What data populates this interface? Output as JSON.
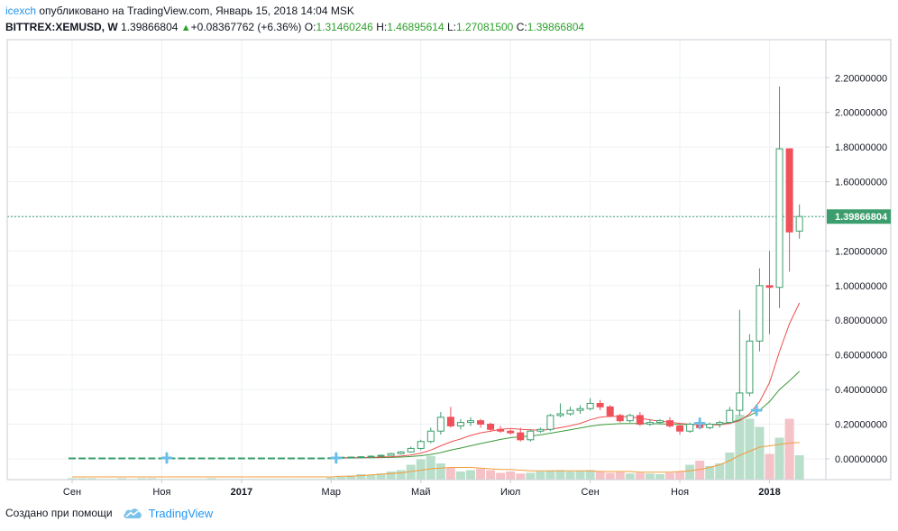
{
  "header": {
    "user": "icexch",
    "published": "опубликовано на TradingView.com, Январь 15, 2018 14:04 MSK"
  },
  "ticker": {
    "symbol": "BITTREX:XEMUSD, W",
    "price": "1.39866804",
    "change": "+0.08367762 (+6.36%)",
    "o_label": "O:",
    "o": "1.31460246",
    "h_label": "H:",
    "h": "1.46895614",
    "l_label": "L:",
    "l": "1.27081500",
    "c_label": "C:",
    "c": "1.39866804"
  },
  "footer": {
    "created_with": "Создано при помощи",
    "brand": "TradingView"
  },
  "colors": {
    "up": "#3c9e6d",
    "down": "#f0505a",
    "vol_up": "#b9dfcb",
    "vol_down": "#f5c2c7",
    "ma_fast": "#ef4f4f",
    "ma_slow": "#3a9a3a",
    "vol_ma": "#f39c39",
    "price_line": "#3c9e6d",
    "marker": "#6bbfe8"
  },
  "chart_data": {
    "type": "candlestick",
    "y_axis_ticks": [
      "2.20000000",
      "2.00000000",
      "1.80000000",
      "1.60000000",
      "1.40000000",
      "1.20000000",
      "1.00000000",
      "0.80000000",
      "0.60000000",
      "0.40000000",
      "0.20000000",
      "0.00000000"
    ],
    "y_axis_values": [
      2.2,
      2.0,
      1.8,
      1.6,
      1.4,
      1.2,
      1.0,
      0.8,
      0.6,
      0.4,
      0.2,
      0.0
    ],
    "ylim": [
      -0.12,
      2.42
    ],
    "x_axis_labels": [
      "Сен",
      "Ноя",
      "2017",
      "Мар",
      "Май",
      "Июл",
      "Сен",
      "Ноя",
      "2018"
    ],
    "x_label_week_index": [
      0,
      9,
      17,
      26,
      35,
      44,
      52,
      61,
      70
    ],
    "last_price_label": "1.39866804",
    "last_price": 1.39866804,
    "candles": [
      [
        0.005,
        0.006,
        0.004,
        0.005
      ],
      [
        0.005,
        0.006,
        0.004,
        0.005
      ],
      [
        0.005,
        0.006,
        0.004,
        0.005
      ],
      [
        0.005,
        0.006,
        0.004,
        0.005
      ],
      [
        0.005,
        0.006,
        0.004,
        0.005
      ],
      [
        0.005,
        0.006,
        0.004,
        0.005
      ],
      [
        0.005,
        0.006,
        0.004,
        0.005
      ],
      [
        0.005,
        0.006,
        0.004,
        0.005
      ],
      [
        0.005,
        0.006,
        0.004,
        0.005
      ],
      [
        0.005,
        0.006,
        0.004,
        0.005
      ],
      [
        0.005,
        0.006,
        0.004,
        0.005
      ],
      [
        0.005,
        0.006,
        0.004,
        0.005
      ],
      [
        0.005,
        0.006,
        0.004,
        0.005
      ],
      [
        0.005,
        0.006,
        0.004,
        0.005
      ],
      [
        0.005,
        0.006,
        0.004,
        0.005
      ],
      [
        0.005,
        0.006,
        0.004,
        0.005
      ],
      [
        0.005,
        0.006,
        0.004,
        0.005
      ],
      [
        0.005,
        0.006,
        0.004,
        0.005
      ],
      [
        0.005,
        0.006,
        0.004,
        0.005
      ],
      [
        0.005,
        0.006,
        0.004,
        0.005
      ],
      [
        0.005,
        0.006,
        0.004,
        0.005
      ],
      [
        0.005,
        0.006,
        0.004,
        0.005
      ],
      [
        0.005,
        0.006,
        0.004,
        0.005
      ],
      [
        0.005,
        0.006,
        0.004,
        0.005
      ],
      [
        0.005,
        0.006,
        0.004,
        0.005
      ],
      [
        0.005,
        0.006,
        0.004,
        0.005
      ],
      [
        0.005,
        0.008,
        0.004,
        0.006
      ],
      [
        0.006,
        0.01,
        0.005,
        0.009
      ],
      [
        0.009,
        0.012,
        0.007,
        0.01
      ],
      [
        0.01,
        0.015,
        0.008,
        0.012
      ],
      [
        0.012,
        0.02,
        0.01,
        0.015
      ],
      [
        0.015,
        0.025,
        0.012,
        0.02
      ],
      [
        0.02,
        0.035,
        0.018,
        0.03
      ],
      [
        0.03,
        0.045,
        0.025,
        0.04
      ],
      [
        0.04,
        0.07,
        0.035,
        0.06
      ],
      [
        0.06,
        0.11,
        0.05,
        0.1
      ],
      [
        0.1,
        0.18,
        0.09,
        0.16
      ],
      [
        0.16,
        0.27,
        0.14,
        0.24
      ],
      [
        0.24,
        0.3,
        0.18,
        0.19
      ],
      [
        0.19,
        0.23,
        0.17,
        0.21
      ],
      [
        0.21,
        0.24,
        0.19,
        0.22
      ],
      [
        0.22,
        0.23,
        0.18,
        0.2
      ],
      [
        0.2,
        0.21,
        0.16,
        0.17
      ],
      [
        0.17,
        0.19,
        0.15,
        0.16
      ],
      [
        0.16,
        0.17,
        0.14,
        0.15
      ],
      [
        0.15,
        0.18,
        0.1,
        0.11
      ],
      [
        0.11,
        0.17,
        0.1,
        0.16
      ],
      [
        0.16,
        0.18,
        0.15,
        0.17
      ],
      [
        0.17,
        0.26,
        0.16,
        0.25
      ],
      [
        0.25,
        0.32,
        0.24,
        0.26
      ],
      [
        0.26,
        0.3,
        0.25,
        0.28
      ],
      [
        0.28,
        0.31,
        0.26,
        0.29
      ],
      [
        0.29,
        0.35,
        0.28,
        0.32
      ],
      [
        0.32,
        0.34,
        0.28,
        0.3
      ],
      [
        0.3,
        0.31,
        0.24,
        0.25
      ],
      [
        0.25,
        0.26,
        0.21,
        0.22
      ],
      [
        0.22,
        0.26,
        0.21,
        0.25
      ],
      [
        0.25,
        0.27,
        0.19,
        0.2
      ],
      [
        0.2,
        0.23,
        0.19,
        0.21
      ],
      [
        0.21,
        0.23,
        0.2,
        0.22
      ],
      [
        0.22,
        0.24,
        0.18,
        0.19
      ],
      [
        0.19,
        0.2,
        0.14,
        0.16
      ],
      [
        0.16,
        0.21,
        0.15,
        0.2
      ],
      [
        0.2,
        0.23,
        0.17,
        0.18
      ],
      [
        0.18,
        0.21,
        0.17,
        0.2
      ],
      [
        0.2,
        0.22,
        0.18,
        0.21
      ],
      [
        0.21,
        0.3,
        0.2,
        0.28
      ],
      [
        0.28,
        0.86,
        0.25,
        0.38
      ],
      [
        0.38,
        0.72,
        0.36,
        0.68
      ],
      [
        0.68,
        1.1,
        0.62,
        1.0
      ],
      [
        1.0,
        1.2,
        0.72,
        0.99
      ],
      [
        0.99,
        2.15,
        0.87,
        1.79
      ],
      [
        1.79,
        1.79,
        1.08,
        1.31
      ],
      [
        1.315,
        1.469,
        1.271,
        1.399
      ]
    ],
    "volume": [
      2,
      2,
      2,
      1,
      1,
      2,
      1,
      2,
      2,
      1,
      1,
      1,
      1,
      1,
      2,
      1,
      1,
      1,
      1,
      1,
      1,
      1,
      1,
      1,
      1,
      1,
      3,
      4,
      6,
      8,
      7,
      9,
      12,
      14,
      22,
      30,
      35,
      24,
      18,
      12,
      14,
      16,
      14,
      10,
      12,
      9,
      10,
      12,
      13,
      14,
      12,
      13,
      14,
      12,
      10,
      11,
      9,
      10,
      9,
      8,
      10,
      12,
      22,
      28,
      20,
      24,
      40,
      96,
      90,
      78,
      38,
      62,
      90,
      36
    ],
    "vol_scale_max": 100,
    "ma_fast": [
      null,
      null,
      null,
      null,
      null,
      null,
      null,
      null,
      null,
      null,
      null,
      null,
      null,
      null,
      null,
      null,
      null,
      null,
      null,
      null,
      null,
      null,
      null,
      null,
      null,
      null,
      0.005,
      0.006,
      0.006,
      0.007,
      0.008,
      0.01,
      0.012,
      0.016,
      0.022,
      0.033,
      0.05,
      0.075,
      0.098,
      0.115,
      0.135,
      0.15,
      0.16,
      0.17,
      0.175,
      0.17,
      0.168,
      0.165,
      0.17,
      0.18,
      0.19,
      0.205,
      0.225,
      0.24,
      0.245,
      0.245,
      0.242,
      0.235,
      0.225,
      0.218,
      0.212,
      0.205,
      0.2,
      0.198,
      0.196,
      0.196,
      0.205,
      0.22,
      0.26,
      0.33,
      0.44,
      0.62,
      0.78,
      0.9
    ],
    "ma_slow": [
      null,
      null,
      null,
      null,
      null,
      null,
      null,
      null,
      null,
      null,
      null,
      null,
      null,
      null,
      null,
      null,
      null,
      null,
      null,
      null,
      null,
      null,
      null,
      null,
      null,
      null,
      0.004,
      0.005,
      0.005,
      0.006,
      0.006,
      0.007,
      0.008,
      0.01,
      0.013,
      0.018,
      0.025,
      0.036,
      0.05,
      0.062,
      0.075,
      0.088,
      0.1,
      0.112,
      0.122,
      0.128,
      0.132,
      0.138,
      0.148,
      0.158,
      0.168,
      0.178,
      0.188,
      0.196,
      0.2,
      0.203,
      0.204,
      0.204,
      0.203,
      0.202,
      0.2,
      0.199,
      0.198,
      0.197,
      0.198,
      0.2,
      0.21,
      0.225,
      0.25,
      0.28,
      0.33,
      0.4,
      0.45,
      0.505
    ],
    "vol_ma": [
      4,
      4,
      4,
      4,
      4,
      4,
      4,
      4,
      4,
      4,
      4,
      4,
      4,
      4,
      4,
      4,
      4,
      4,
      4,
      4,
      4,
      4,
      4,
      4,
      4,
      4,
      4,
      5,
      5,
      6,
      7,
      8,
      9,
      10,
      12,
      14,
      16,
      17,
      18,
      18,
      18,
      17,
      16,
      15,
      15,
      14,
      13,
      13,
      13,
      13,
      13,
      13,
      13,
      12,
      12,
      12,
      12,
      11,
      11,
      11,
      11,
      12,
      13,
      15,
      18,
      22,
      28,
      36,
      42,
      48,
      50,
      52,
      54,
      55
    ],
    "markers": [
      {
        "week": 9.5,
        "value": 0.005
      },
      {
        "week": 26.5,
        "value": 0.005
      },
      {
        "week": 63,
        "value": 0.205
      },
      {
        "week": 68.7,
        "value": 0.28
      }
    ]
  }
}
